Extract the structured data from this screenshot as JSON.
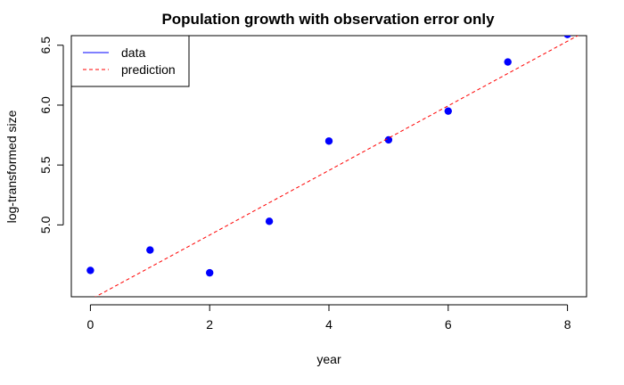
{
  "chart_data": {
    "type": "scatter",
    "title": "Population growth with observation error only",
    "xlabel": "year",
    "ylabel": "log-transformed size",
    "xlim": [
      -0.32,
      8.32
    ],
    "ylim": [
      4.4,
      6.58
    ],
    "x_ticks": [
      0,
      2,
      4,
      6,
      8
    ],
    "y_ticks": [
      5.0,
      5.5,
      6.0,
      6.5
    ],
    "x_tick_labels": [
      "0",
      "2",
      "4",
      "6",
      "8"
    ],
    "y_tick_labels": [
      "5.0",
      "5.5",
      "6.0",
      "6.5"
    ],
    "grid": false,
    "legend_position": "top-left",
    "series": [
      {
        "name": "data",
        "style": "points",
        "color": "#0000ff",
        "x": [
          0,
          1,
          2,
          3,
          4,
          5,
          6,
          7,
          8
        ],
        "y": [
          4.62,
          4.79,
          4.6,
          5.03,
          5.7,
          5.71,
          5.95,
          6.36,
          6.59
        ]
      },
      {
        "name": "prediction",
        "style": "dashed-line",
        "color": "#ff0000",
        "x": [
          -0.32,
          8.32
        ],
        "y": [
          4.29,
          6.62
        ]
      }
    ],
    "legend": [
      {
        "label": "data",
        "color": "#0000ff",
        "style": "solid-line"
      },
      {
        "label": "prediction",
        "color": "#ff0000",
        "style": "dashed-line"
      }
    ]
  }
}
